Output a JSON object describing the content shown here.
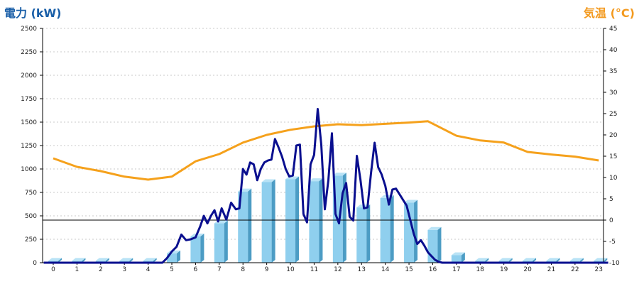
{
  "header": {
    "left_title": "電力 (kW)",
    "right_title": "気温 (°C)"
  },
  "colors": {
    "bar_front": "#8fcfee",
    "bar_side": "#4c9cc4",
    "bar_top": "#b9e3f6",
    "power_line": "#0a0f8f",
    "temp_line": "#f5a11c",
    "grid": "#c8c8c8",
    "zero_line": "#000000"
  },
  "chart_data": {
    "type": "bar",
    "categories": [
      "0",
      "1",
      "2",
      "3",
      "4",
      "5",
      "6",
      "7",
      "8",
      "9",
      "10",
      "11",
      "12",
      "13",
      "14",
      "15",
      "16",
      "17",
      "18",
      "19",
      "20",
      "21",
      "22",
      "23"
    ],
    "series": [
      {
        "type": "bar",
        "axis": "left",
        "values": [
          20,
          20,
          20,
          20,
          20,
          100,
          280,
          420,
          760,
          860,
          890,
          870,
          930,
          590,
          690,
          640,
          350,
          80,
          20,
          20,
          20,
          20,
          20,
          20
        ]
      },
      {
        "type": "line",
        "axis": "left",
        "x": [
          4.6,
          4.8,
          5.0,
          5.2,
          5.4,
          5.6,
          5.8,
          6.0,
          6.2,
          6.35,
          6.5,
          6.65,
          6.8,
          6.95,
          7.1,
          7.3,
          7.5,
          7.7,
          7.85,
          8.0,
          8.15,
          8.3,
          8.45,
          8.6,
          8.75,
          8.9,
          9.05,
          9.2,
          9.35,
          9.5,
          9.65,
          9.8,
          9.95,
          10.1,
          10.25,
          10.4,
          10.55,
          10.7,
          10.85,
          11.0,
          11.15,
          11.3,
          11.45,
          11.6,
          11.75,
          11.9,
          12.05,
          12.2,
          12.35,
          12.5,
          12.65,
          12.8,
          12.95,
          13.1,
          13.25,
          13.4,
          13.55,
          13.7,
          13.85,
          14.0,
          14.15,
          14.3,
          14.45,
          14.6,
          14.75,
          14.9,
          15.05,
          15.2,
          15.35,
          15.5,
          15.65,
          15.8,
          15.95,
          16.1,
          16.25,
          16.4,
          16.55,
          16.7,
          16.85,
          17.0,
          17.2,
          17.4,
          17.6
        ],
        "values": [
          0,
          50,
          120,
          170,
          300,
          240,
          250,
          270,
          390,
          500,
          420,
          500,
          560,
          440,
          580,
          460,
          640,
          570,
          580,
          1000,
          940,
          1070,
          1050,
          880,
          1000,
          1070,
          1090,
          1100,
          1320,
          1230,
          1130,
          1000,
          920,
          930,
          1250,
          1260,
          520,
          430,
          1050,
          1150,
          1640,
          1260,
          570,
          880,
          1380,
          520,
          420,
          740,
          850,
          490,
          450,
          1140,
          890,
          580,
          590,
          960,
          1280,
          1020,
          940,
          820,
          620,
          780,
          790,
          730,
          670,
          610,
          460,
          310,
          200,
          240,
          180,
          110,
          70,
          30,
          10,
          0,
          0,
          0,
          0,
          0,
          0,
          0,
          0
        ]
      },
      {
        "type": "line",
        "axis": "right",
        "x": [
          0,
          1,
          2,
          3,
          4,
          5,
          6,
          7,
          8,
          9,
          10,
          11,
          12,
          13,
          14,
          15,
          15.8,
          17,
          18,
          19,
          20,
          21,
          22,
          23
        ],
        "values": [
          14.5,
          12.5,
          11.5,
          10.2,
          9.5,
          10.2,
          13.8,
          15.5,
          18.2,
          20,
          21.2,
          22,
          22.5,
          22.3,
          22.6,
          22.9,
          23.2,
          19.8,
          18.7,
          18.2,
          16,
          15.4,
          14.9,
          14
        ]
      }
    ],
    "left_axis": {
      "min": 0,
      "max": 2500,
      "step": 250,
      "ticks": [
        "0",
        "250",
        "500",
        "750",
        "1000",
        "1250",
        "1500",
        "1750",
        "2000",
        "2250",
        "2500"
      ]
    },
    "right_axis": {
      "min": -10,
      "max": 45,
      "step": 5,
      "ticks": [
        "-10",
        "-5",
        "0",
        "5",
        "10",
        "15",
        "20",
        "25",
        "30",
        "35",
        "40",
        "45"
      ]
    },
    "grid": true
  }
}
